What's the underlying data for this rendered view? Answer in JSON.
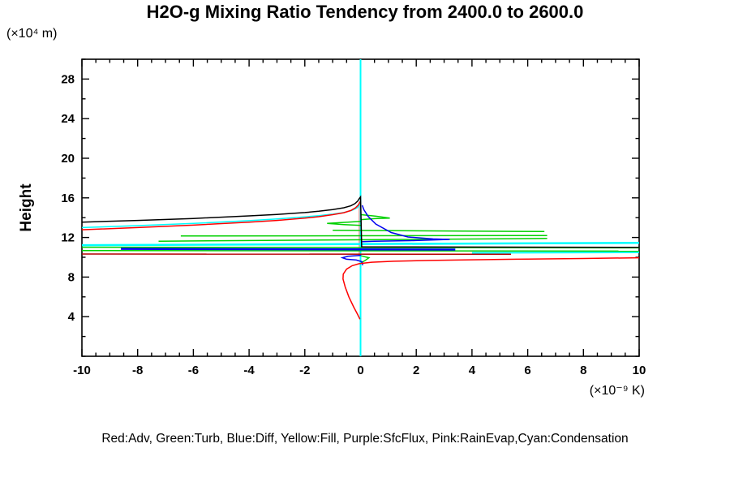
{
  "title": "H2O-g Mixing Ratio Tendency from 2400.0 to 2600.0",
  "legend_caption": "Red:Adv, Green:Turb, Blue:Diff, Yellow:Fill, Purple:SfcFlux, Pink:RainEvap,Cyan:Condensation",
  "y_unit_label": "(×10⁴ m)",
  "x_unit_label": "(×10⁻⁹ K)",
  "y_axis_label": "Height",
  "colors": {
    "adv_red": "#ff0000",
    "adv_dark_red": "#b40000",
    "turb_green": "#00d000",
    "diff_blue": "#0000f0",
    "condensation_cyan": "#00ffff",
    "rainevap_pink": "#ff9f9f",
    "net_black": "#000000",
    "axis": "#000000"
  },
  "chart_data": {
    "type": "line",
    "title": "H2O-g Mixing Ratio Tendency from 2400.0 to 2600.0",
    "xlabel": "(×10⁻⁹ K)",
    "ylabel": "Height (×10⁴ m)",
    "xlim": [
      -10,
      10
    ],
    "ylim": [
      0,
      30
    ],
    "x_major_ticks": [
      -10,
      -8,
      -6,
      -4,
      -2,
      0,
      2,
      4,
      6,
      8,
      10
    ],
    "x_minor_step": 0.5,
    "y_major_ticks": [
      4,
      8,
      12,
      16,
      20,
      24,
      28
    ],
    "y_minor_step": 2,
    "grid": false,
    "legend_position": "bottom-caption",
    "series": [
      {
        "name": "condensation-zero-line",
        "color": "#00ffff",
        "width": 2,
        "points": [
          [
            0,
            0
          ],
          [
            0,
            30
          ]
        ]
      },
      {
        "name": "rainevap-zero-line",
        "color": "#ff9f9f",
        "width": 1.5,
        "points": [
          [
            -0.05,
            15.5
          ],
          [
            -0.05,
            10.1
          ]
        ]
      },
      {
        "name": "condensation-profile-upper",
        "color": "#00ffff",
        "width": 1.5,
        "points": [
          [
            -10,
            13.0
          ],
          [
            -8,
            13.2
          ],
          [
            -6,
            13.42
          ],
          [
            -4,
            13.7
          ],
          [
            -3,
            13.88
          ],
          [
            -2,
            14.08
          ],
          [
            -1.5,
            14.2
          ],
          [
            -1,
            14.35
          ],
          [
            -0.6,
            14.52
          ],
          [
            -0.3,
            14.75
          ],
          [
            -0.12,
            15.0
          ],
          [
            -0.03,
            15.3
          ],
          [
            0,
            15.55
          ]
        ]
      },
      {
        "name": "condensation-layer-line-a",
        "color": "#00ffff",
        "width": 2.5,
        "points": [
          [
            -10,
            11.22
          ],
          [
            10,
            11.45
          ]
        ]
      },
      {
        "name": "condensation-layer-line-b",
        "color": "#00ffff",
        "width": 2,
        "points": [
          [
            4,
            10.45
          ],
          [
            10,
            10.5
          ]
        ]
      },
      {
        "name": "turb-spike-right",
        "color": "#00d000",
        "width": 1.5,
        "points": [
          [
            0.02,
            14.3
          ],
          [
            0.55,
            14.15
          ],
          [
            1.05,
            13.95
          ],
          [
            0.5,
            13.9
          ],
          [
            0.02,
            13.8
          ]
        ]
      },
      {
        "name": "turb-bulge-left",
        "color": "#00d000",
        "width": 1.5,
        "points": [
          [
            0.02,
            13.62
          ],
          [
            -0.7,
            13.5
          ],
          [
            -1.2,
            13.42
          ],
          [
            -0.6,
            13.3
          ],
          [
            0.02,
            13.22
          ]
        ]
      },
      {
        "name": "turb-layer-line-a",
        "color": "#00d000",
        "width": 1.5,
        "points": [
          [
            -1.0,
            12.72
          ],
          [
            6.6,
            12.6
          ]
        ]
      },
      {
        "name": "turb-layer-line-b",
        "color": "#00d000",
        "width": 1.5,
        "points": [
          [
            -6.45,
            12.15
          ],
          [
            6.7,
            12.2
          ]
        ]
      },
      {
        "name": "turb-layer-line-c",
        "color": "#00d000",
        "width": 1.5,
        "points": [
          [
            -7.25,
            11.62
          ],
          [
            6.7,
            11.9
          ]
        ]
      },
      {
        "name": "turb-layer-line-d",
        "color": "#00d000",
        "width": 1.5,
        "points": [
          [
            -10,
            11.02
          ],
          [
            10,
            10.95
          ]
        ]
      },
      {
        "name": "turb-layer-line-e",
        "color": "#00d000",
        "width": 1.5,
        "points": [
          [
            -10,
            10.68
          ],
          [
            10,
            10.62
          ]
        ]
      },
      {
        "name": "turb-wiggle-low",
        "color": "#00d000",
        "width": 1.5,
        "points": [
          [
            0.02,
            10.15
          ],
          [
            0.3,
            9.95
          ],
          [
            0.15,
            9.65
          ],
          [
            0.02,
            9.45
          ]
        ]
      },
      {
        "name": "diff-hook",
        "color": "#0000f0",
        "width": 1.5,
        "points": [
          [
            0.06,
            15.25
          ],
          [
            0.12,
            14.8
          ],
          [
            0.28,
            14.1
          ],
          [
            0.55,
            13.35
          ],
          [
            1.1,
            12.5
          ],
          [
            1.7,
            12.05
          ],
          [
            2.6,
            11.85
          ],
          [
            3.2,
            11.8
          ],
          [
            1.8,
            11.68
          ],
          [
            0.5,
            11.62
          ],
          [
            0.06,
            11.58
          ]
        ]
      },
      {
        "name": "diff-layer-line",
        "color": "#0000f0",
        "width": 2.5,
        "points": [
          [
            -8.6,
            10.85
          ],
          [
            3.4,
            10.78
          ]
        ]
      },
      {
        "name": "diff-loop-low",
        "color": "#0000f0",
        "width": 1.5,
        "points": [
          [
            0.02,
            10.2
          ],
          [
            -0.45,
            10.1
          ],
          [
            -0.65,
            9.95
          ],
          [
            -0.5,
            9.8
          ],
          [
            -0.15,
            9.72
          ],
          [
            0.05,
            9.55
          ],
          [
            0.08,
            9.2
          ]
        ]
      },
      {
        "name": "adv-profile-upper",
        "color": "#ff0000",
        "width": 1.5,
        "points": [
          [
            -10,
            12.78
          ],
          [
            -8,
            13.0
          ],
          [
            -6,
            13.25
          ],
          [
            -4,
            13.55
          ],
          [
            -3,
            13.72
          ],
          [
            -2,
            13.95
          ],
          [
            -1.5,
            14.1
          ],
          [
            -1,
            14.3
          ],
          [
            -0.6,
            14.5
          ],
          [
            -0.35,
            14.72
          ],
          [
            -0.18,
            15.0
          ],
          [
            -0.07,
            15.3
          ],
          [
            -0.02,
            15.62
          ]
        ]
      },
      {
        "name": "adv-layer-line",
        "color": "#b40000",
        "width": 1.5,
        "points": [
          [
            -10,
            10.33
          ],
          [
            5.4,
            10.3
          ]
        ]
      },
      {
        "name": "adv-profile-lower",
        "color": "#ff0000",
        "width": 1.5,
        "points": [
          [
            -0.02,
            3.75
          ],
          [
            -0.12,
            4.3
          ],
          [
            -0.25,
            5.0
          ],
          [
            -0.42,
            6.0
          ],
          [
            -0.55,
            7.0
          ],
          [
            -0.63,
            7.8
          ],
          [
            -0.62,
            8.3
          ],
          [
            -0.5,
            8.8
          ],
          [
            -0.3,
            9.15
          ],
          [
            -0.05,
            9.35
          ],
          [
            0.4,
            9.5
          ],
          [
            1.2,
            9.6
          ],
          [
            2.5,
            9.68
          ],
          [
            4,
            9.75
          ],
          [
            6,
            9.82
          ],
          [
            8,
            9.88
          ],
          [
            10,
            9.95
          ]
        ]
      },
      {
        "name": "net-profile",
        "color": "#000000",
        "width": 1.5,
        "points": [
          [
            -10,
            13.55
          ],
          [
            -8,
            13.72
          ],
          [
            -6,
            13.92
          ],
          [
            -4,
            14.18
          ],
          [
            -3,
            14.32
          ],
          [
            -2,
            14.52
          ],
          [
            -1.5,
            14.65
          ],
          [
            -1,
            14.82
          ],
          [
            -0.6,
            15.0
          ],
          [
            -0.35,
            15.2
          ],
          [
            -0.2,
            15.42
          ],
          [
            -0.1,
            15.68
          ],
          [
            -0.04,
            15.95
          ],
          [
            0,
            16.1
          ],
          [
            0.04,
            11.05
          ],
          [
            10,
            11.0
          ]
        ]
      }
    ]
  }
}
